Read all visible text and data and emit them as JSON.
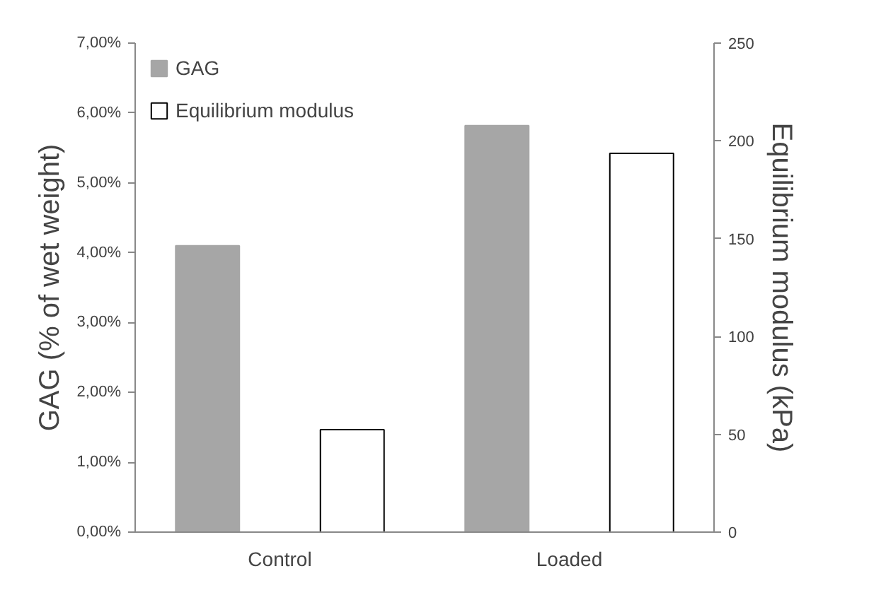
{
  "chart_data": {
    "type": "bar",
    "categories": [
      "Control",
      "Loaded"
    ],
    "ylabel": "GAG (% of wet weight)",
    "y2label": "Equilibrium modulus (kPa)",
    "series": [
      {
        "name": "GAG",
        "color": "#a6a6a6",
        "values": [
          4.1,
          5.82
        ]
      },
      {
        "name": "Equilibrium modulus",
        "color": "#ffffff",
        "values": [
          52.4,
          193.6
        ],
        "axis": "y2"
      }
    ],
    "ylim": [
      0,
      7
    ],
    "yticks": [
      {
        "value": 0,
        "label": "0,00%"
      },
      {
        "value": 1,
        "label": "1,00%"
      },
      {
        "value": 2,
        "label": "2,00%"
      },
      {
        "value": 3,
        "label": "3,00%"
      },
      {
        "value": 4,
        "label": "4,00%"
      },
      {
        "value": 5,
        "label": "5,00%"
      },
      {
        "value": 6,
        "label": "6,00%"
      },
      {
        "value": 7,
        "label": "7,00%"
      }
    ],
    "y2lim": [
      0,
      250
    ],
    "y2ticks": [
      0,
      50,
      100,
      150,
      200,
      250
    ],
    "grid": false,
    "legend": "top left"
  }
}
